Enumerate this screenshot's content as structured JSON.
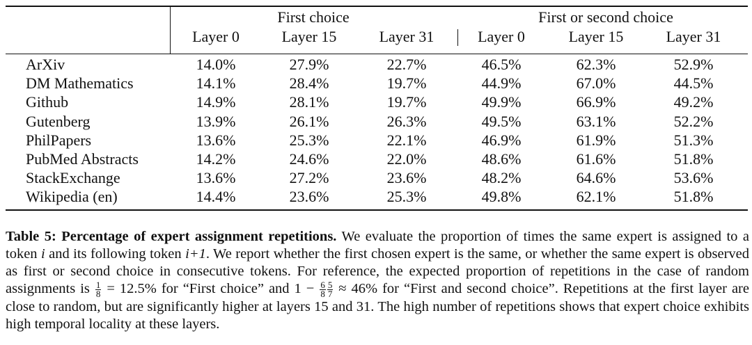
{
  "table": {
    "groups": [
      "First choice",
      "First or second choice"
    ],
    "layers": [
      "Layer 0",
      "Layer 15",
      "Layer 31",
      "Layer 0",
      "Layer 15",
      "Layer 31"
    ],
    "rows": [
      {
        "name": "ArXiv",
        "values": [
          "14.0%",
          "27.9%",
          "22.7%",
          "46.5%",
          "62.3%",
          "52.9%"
        ]
      },
      {
        "name": "DM Mathematics",
        "values": [
          "14.1%",
          "28.4%",
          "19.7%",
          "44.9%",
          "67.0%",
          "44.5%"
        ]
      },
      {
        "name": "Github",
        "values": [
          "14.9%",
          "28.1%",
          "19.7%",
          "49.9%",
          "66.9%",
          "49.2%"
        ]
      },
      {
        "name": "Gutenberg",
        "values": [
          "13.9%",
          "26.1%",
          "26.3%",
          "49.5%",
          "63.1%",
          "52.2%"
        ]
      },
      {
        "name": "PhilPapers",
        "values": [
          "13.6%",
          "25.3%",
          "22.1%",
          "46.9%",
          "61.9%",
          "51.3%"
        ]
      },
      {
        "name": "PubMed Abstracts",
        "values": [
          "14.2%",
          "24.6%",
          "22.0%",
          "48.6%",
          "61.6%",
          "51.8%"
        ]
      },
      {
        "name": "StackExchange",
        "values": [
          "13.6%",
          "27.2%",
          "23.6%",
          "48.2%",
          "64.6%",
          "53.6%"
        ]
      },
      {
        "name": "Wikipedia (en)",
        "values": [
          "14.4%",
          "23.6%",
          "25.3%",
          "49.8%",
          "62.1%",
          "51.8%"
        ]
      }
    ]
  },
  "caption": {
    "title": "Table 5: Percentage of expert assignment repetitions.",
    "s1": " We evaluate the proportion of times the same expert is assigned to a token ",
    "var_i": "i",
    "s2": " and its following token ",
    "var_i1": "i+1",
    "s3": ". We report whether the first chosen expert is the same, or whether the same expert is observed as first or second choice in consecutive tokens. For reference, the expected proportion of repetitions in the case of random assignments is ",
    "frac1_num": "1",
    "frac1_den": "8",
    "s4": " = 12.5% for “First choice” and 1 − ",
    "frac2_num": "6",
    "frac2_den": "8",
    "frac3_num": "5",
    "frac3_den": "7",
    "s5": " ≈ 46% for “First and second choice”. Repetitions at the first layer are close to random, but are significantly higher at layers 15 and 31. The high number of repetitions shows that expert choice exhibits high temporal locality at these layers."
  }
}
